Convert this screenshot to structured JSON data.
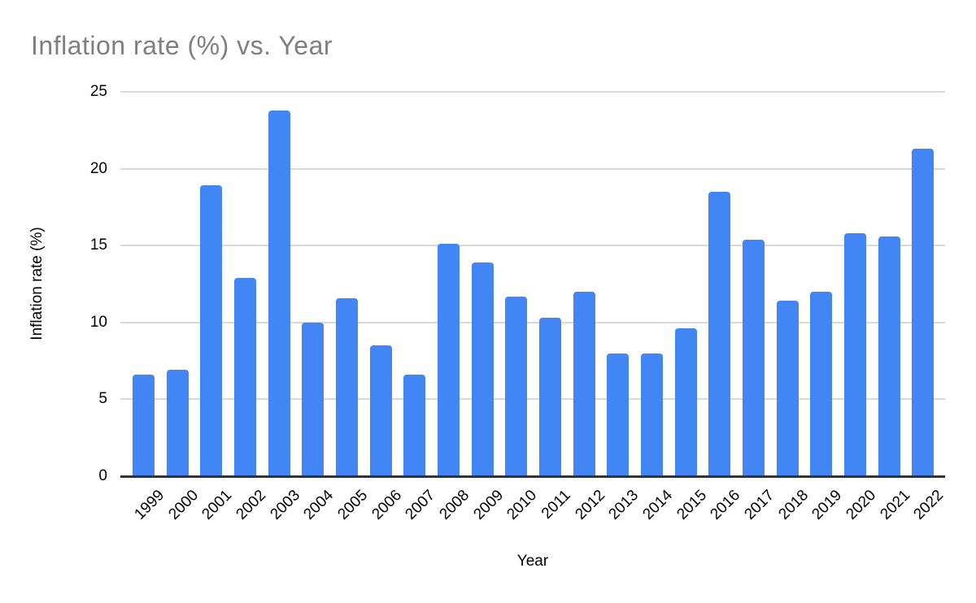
{
  "chart_data": {
    "type": "bar",
    "title": "Inflation rate (%) vs. Year",
    "xlabel": "Year",
    "ylabel": "Inflation rate (%)",
    "categories": [
      "1999",
      "2000",
      "2001",
      "2002",
      "2003",
      "2004",
      "2005",
      "2006",
      "2007",
      "2008",
      "2009",
      "2010",
      "2011",
      "2012",
      "2013",
      "2014",
      "2015",
      "2016",
      "2017",
      "2018",
      "2019",
      "2020",
      "2021",
      "2022"
    ],
    "values": [
      6.6,
      6.9,
      18.9,
      12.9,
      23.8,
      10.0,
      11.6,
      8.5,
      6.6,
      15.1,
      13.9,
      11.7,
      10.3,
      12.0,
      8.0,
      8.0,
      9.6,
      18.5,
      15.4,
      11.4,
      12.0,
      15.8,
      15.6,
      21.3
    ],
    "ylim": [
      0,
      25
    ],
    "yticks": [
      0,
      5,
      10,
      15,
      20,
      25
    ],
    "grid": true,
    "legend_position": "none",
    "series_name": "Inflation rate (%)"
  },
  "colors": {
    "bar": "#4285f4",
    "title_text": "#7f7f7f",
    "gridline": "#d9d9d9",
    "axis_line": "#333333",
    "tick_text": "#000000"
  }
}
